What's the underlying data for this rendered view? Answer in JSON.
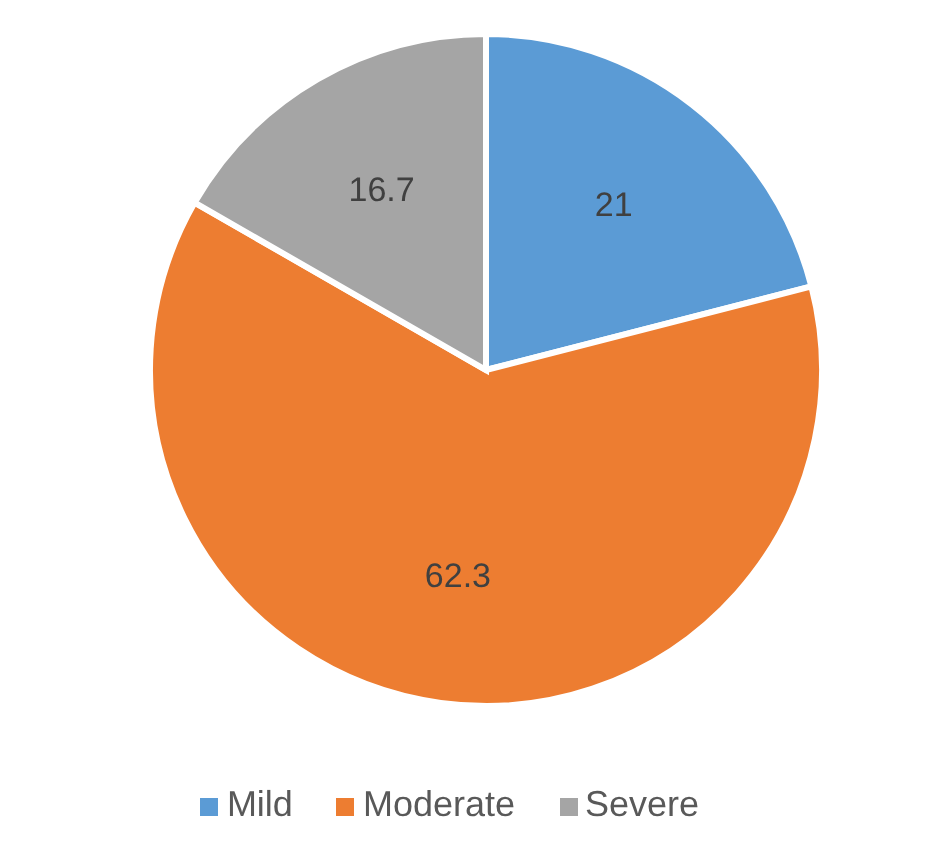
{
  "chart_data": {
    "type": "pie",
    "categories": [
      "Mild",
      "Moderate",
      "Severe"
    ],
    "values": [
      21,
      62.3,
      16.7
    ],
    "colors": [
      "#5b9bd5",
      "#ed7d31",
      "#a5a5a5"
    ],
    "data_labels": true,
    "legend": "bottom"
  }
}
